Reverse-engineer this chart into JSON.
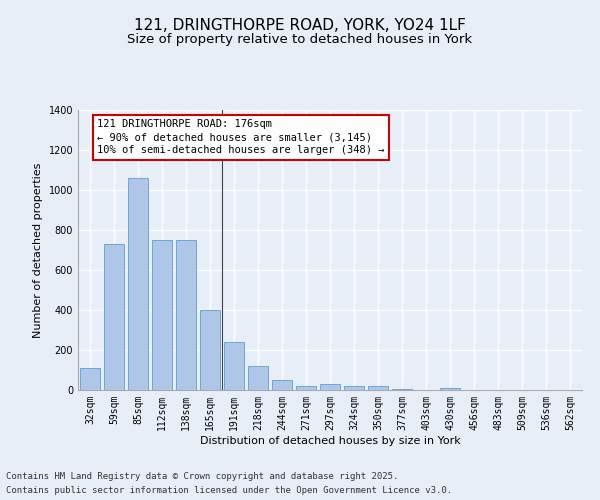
{
  "title_line1": "121, DRINGTHORPE ROAD, YORK, YO24 1LF",
  "title_line2": "Size of property relative to detached houses in York",
  "xlabel": "Distribution of detached houses by size in York",
  "ylabel": "Number of detached properties",
  "categories": [
    "32sqm",
    "59sqm",
    "85sqm",
    "112sqm",
    "138sqm",
    "165sqm",
    "191sqm",
    "218sqm",
    "244sqm",
    "271sqm",
    "297sqm",
    "324sqm",
    "350sqm",
    "377sqm",
    "403sqm",
    "430sqm",
    "456sqm",
    "483sqm",
    "509sqm",
    "536sqm",
    "562sqm"
  ],
  "values": [
    110,
    730,
    1060,
    750,
    750,
    400,
    240,
    120,
    50,
    20,
    30,
    20,
    20,
    5,
    0,
    10,
    0,
    0,
    0,
    0,
    0
  ],
  "bar_color": "#aec6e8",
  "bar_edge_color": "#5a9fd4",
  "annotation_text": "121 DRINGTHORPE ROAD: 176sqm\n← 90% of detached houses are smaller (3,145)\n10% of semi-detached houses are larger (348) →",
  "annotation_box_color": "#ffffff",
  "annotation_box_edge_color": "#cc0000",
  "ylim": [
    0,
    1400
  ],
  "yticks": [
    0,
    200,
    400,
    600,
    800,
    1000,
    1200,
    1400
  ],
  "bg_color": "#e8eef8",
  "plot_bg_color": "#e8eef8",
  "footer_line1": "Contains HM Land Registry data © Crown copyright and database right 2025.",
  "footer_line2": "Contains public sector information licensed under the Open Government Licence v3.0.",
  "title_fontsize": 11,
  "subtitle_fontsize": 9.5,
  "annotation_fontsize": 7.5,
  "axis_label_fontsize": 8,
  "tick_fontsize": 7,
  "footer_fontsize": 6.5,
  "grid_color": "#ffffff",
  "grid_linewidth": 1.0
}
